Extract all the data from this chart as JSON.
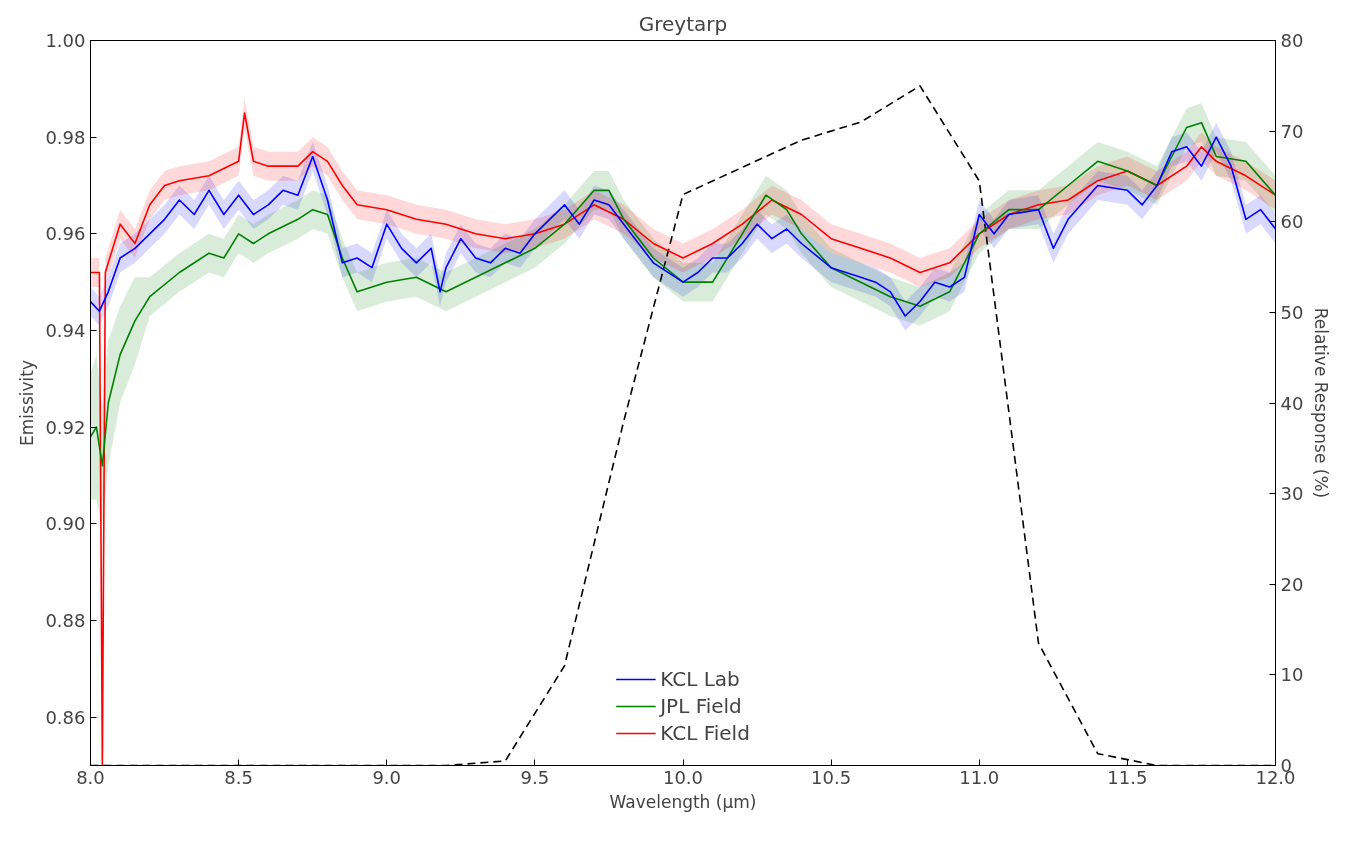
{
  "chart_data": {
    "type": "line",
    "title": "Greytarp",
    "xlabel": "Wavelength (μm)",
    "ylabel": "Emissivity",
    "y2label": "Relative Response (%)",
    "xlim": [
      8.0,
      12.0
    ],
    "xticks": [
      {
        "value": 8.0,
        "label": "8.0"
      },
      {
        "value": 8.5,
        "label": "8.5"
      },
      {
        "value": 9.0,
        "label": "9.0"
      },
      {
        "value": 9.5,
        "label": "9.5"
      },
      {
        "value": 10.0,
        "label": "10.0"
      },
      {
        "value": 10.5,
        "label": "10.5"
      },
      {
        "value": 11.0,
        "label": "11.0"
      },
      {
        "value": 11.5,
        "label": "11.5"
      },
      {
        "value": 12.0,
        "label": "12.0"
      }
    ],
    "ylim": [
      0.85,
      1.0
    ],
    "yticks": [
      0.86,
      0.88,
      {
        "value": 0.9,
        "label": "0.90"
      },
      0.92,
      0.94,
      0.96,
      0.98,
      {
        "value": 1.0,
        "label": "1.00"
      }
    ],
    "y2lim": [
      0,
      80
    ],
    "y2ticks": [
      0,
      10,
      20,
      30,
      40,
      50,
      60,
      70,
      80
    ],
    "grid": false,
    "legend": "bottom",
    "marker": "none",
    "line_style": "solid",
    "series": [
      {
        "name": "KCL Lab",
        "color": "#0000ff",
        "x": [
          8.0,
          8.03,
          8.06,
          8.1,
          8.15,
          8.2,
          8.25,
          8.3,
          8.35,
          8.4,
          8.45,
          8.5,
          8.55,
          8.6,
          8.65,
          8.7,
          8.75,
          8.8,
          8.85,
          8.9,
          8.95,
          9.0,
          9.05,
          9.1,
          9.15,
          9.18,
          9.2,
          9.25,
          9.3,
          9.35,
          9.4,
          9.45,
          9.5,
          9.55,
          9.6,
          9.65,
          9.7,
          9.75,
          9.8,
          9.85,
          9.9,
          10.0,
          10.05,
          10.1,
          10.15,
          10.2,
          10.25,
          10.3,
          10.35,
          10.4,
          10.5,
          10.6,
          10.65,
          10.7,
          10.75,
          10.8,
          10.85,
          10.9,
          10.95,
          11.0,
          11.05,
          11.1,
          11.2,
          11.25,
          11.3,
          11.4,
          11.5,
          11.55,
          11.6,
          11.65,
          11.7,
          11.75,
          11.8,
          11.85,
          11.9,
          11.95,
          12.0
        ],
        "values": [
          0.946,
          0.944,
          0.948,
          0.955,
          0.957,
          0.96,
          0.963,
          0.967,
          0.964,
          0.969,
          0.964,
          0.968,
          0.964,
          0.966,
          0.969,
          0.968,
          0.976,
          0.967,
          0.954,
          0.955,
          0.953,
          0.962,
          0.957,
          0.954,
          0.957,
          0.948,
          0.953,
          0.959,
          0.955,
          0.954,
          0.957,
          0.956,
          0.96,
          0.963,
          0.966,
          0.962,
          0.967,
          0.966,
          0.962,
          0.958,
          0.954,
          0.95,
          0.952,
          0.955,
          0.955,
          0.958,
          0.962,
          0.959,
          0.961,
          0.958,
          0.953,
          0.951,
          0.95,
          0.948,
          0.943,
          0.946,
          0.95,
          0.949,
          0.951,
          0.964,
          0.96,
          0.964,
          0.965,
          0.957,
          0.963,
          0.97,
          0.969,
          0.966,
          0.97,
          0.977,
          0.978,
          0.974,
          0.98,
          0.974,
          0.963,
          0.965,
          0.961
        ],
        "lower": [
          0.943,
          0.941,
          0.945,
          0.952,
          0.954,
          0.957,
          0.96,
          0.964,
          0.961,
          0.966,
          0.961,
          0.965,
          0.961,
          0.963,
          0.966,
          0.965,
          0.973,
          0.964,
          0.951,
          0.952,
          0.95,
          0.959,
          0.954,
          0.951,
          0.954,
          0.945,
          0.95,
          0.956,
          0.952,
          0.951,
          0.954,
          0.953,
          0.957,
          0.96,
          0.963,
          0.959,
          0.964,
          0.963,
          0.959,
          0.955,
          0.951,
          0.947,
          0.949,
          0.952,
          0.952,
          0.955,
          0.959,
          0.956,
          0.958,
          0.955,
          0.95,
          0.948,
          0.947,
          0.945,
          0.94,
          0.943,
          0.947,
          0.946,
          0.948,
          0.961,
          0.957,
          0.961,
          0.962,
          0.954,
          0.96,
          0.967,
          0.966,
          0.963,
          0.967,
          0.974,
          0.975,
          0.971,
          0.977,
          0.971,
          0.96,
          0.962,
          0.958
        ],
        "upper": [
          0.949,
          0.947,
          0.951,
          0.958,
          0.96,
          0.963,
          0.966,
          0.97,
          0.967,
          0.972,
          0.967,
          0.971,
          0.967,
          0.969,
          0.972,
          0.971,
          0.979,
          0.97,
          0.957,
          0.958,
          0.956,
          0.965,
          0.96,
          0.957,
          0.96,
          0.951,
          0.956,
          0.962,
          0.958,
          0.957,
          0.96,
          0.959,
          0.963,
          0.966,
          0.969,
          0.965,
          0.97,
          0.969,
          0.965,
          0.961,
          0.957,
          0.953,
          0.955,
          0.958,
          0.958,
          0.961,
          0.965,
          0.962,
          0.964,
          0.961,
          0.956,
          0.954,
          0.953,
          0.951,
          0.946,
          0.949,
          0.953,
          0.952,
          0.954,
          0.967,
          0.963,
          0.967,
          0.968,
          0.96,
          0.966,
          0.973,
          0.972,
          0.969,
          0.973,
          0.98,
          0.981,
          0.977,
          0.983,
          0.977,
          0.966,
          0.968,
          0.964
        ]
      },
      {
        "name": "JPL Field",
        "color": "#008000",
        "x": [
          8.0,
          8.02,
          8.04,
          8.06,
          8.1,
          8.15,
          8.2,
          8.3,
          8.4,
          8.45,
          8.5,
          8.55,
          8.6,
          8.7,
          8.75,
          8.8,
          8.85,
          8.9,
          9.0,
          9.1,
          9.2,
          9.3,
          9.4,
          9.5,
          9.6,
          9.7,
          9.75,
          9.8,
          9.9,
          10.0,
          10.1,
          10.2,
          10.28,
          10.35,
          10.4,
          10.5,
          10.6,
          10.7,
          10.8,
          10.9,
          11.0,
          11.1,
          11.2,
          11.3,
          11.4,
          11.5,
          11.6,
          11.7,
          11.75,
          11.8,
          11.9,
          12.0
        ],
        "values": [
          0.918,
          0.92,
          0.912,
          0.925,
          0.935,
          0.942,
          0.947,
          0.952,
          0.956,
          0.955,
          0.96,
          0.958,
          0.96,
          0.963,
          0.965,
          0.964,
          0.955,
          0.948,
          0.95,
          0.951,
          0.948,
          0.951,
          0.954,
          0.957,
          0.962,
          0.969,
          0.969,
          0.963,
          0.955,
          0.95,
          0.95,
          0.96,
          0.968,
          0.965,
          0.96,
          0.953,
          0.95,
          0.947,
          0.945,
          0.948,
          0.96,
          0.965,
          0.965,
          0.97,
          0.975,
          0.973,
          0.97,
          0.982,
          0.983,
          0.976,
          0.975,
          0.968
        ],
        "lower": [
          0.905,
          0.905,
          0.9,
          0.912,
          0.925,
          0.933,
          0.943,
          0.948,
          0.952,
          0.951,
          0.956,
          0.954,
          0.956,
          0.959,
          0.961,
          0.96,
          0.951,
          0.944,
          0.946,
          0.947,
          0.944,
          0.947,
          0.95,
          0.953,
          0.958,
          0.965,
          0.965,
          0.959,
          0.951,
          0.946,
          0.946,
          0.956,
          0.964,
          0.961,
          0.956,
          0.949,
          0.946,
          0.943,
          0.941,
          0.944,
          0.956,
          0.961,
          0.961,
          0.966,
          0.971,
          0.969,
          0.966,
          0.978,
          0.979,
          0.972,
          0.971,
          0.964
        ],
        "upper": [
          0.931,
          0.935,
          0.924,
          0.938,
          0.945,
          0.951,
          0.951,
          0.956,
          0.96,
          0.959,
          0.964,
          0.962,
          0.964,
          0.967,
          0.969,
          0.968,
          0.959,
          0.952,
          0.954,
          0.955,
          0.952,
          0.955,
          0.958,
          0.961,
          0.966,
          0.973,
          0.973,
          0.967,
          0.959,
          0.954,
          0.954,
          0.964,
          0.972,
          0.969,
          0.964,
          0.957,
          0.954,
          0.951,
          0.949,
          0.952,
          0.964,
          0.969,
          0.969,
          0.974,
          0.979,
          0.977,
          0.974,
          0.986,
          0.987,
          0.98,
          0.979,
          0.972
        ]
      },
      {
        "name": "KCL Field",
        "color": "#ff0000",
        "x": [
          8.0,
          8.03,
          8.04,
          8.05,
          8.1,
          8.15,
          8.2,
          8.25,
          8.3,
          8.4,
          8.5,
          8.52,
          8.55,
          8.6,
          8.7,
          8.75,
          8.8,
          8.85,
          8.9,
          9.0,
          9.1,
          9.2,
          9.3,
          9.4,
          9.5,
          9.6,
          9.7,
          9.8,
          9.9,
          10.0,
          10.1,
          10.2,
          10.3,
          10.4,
          10.5,
          10.6,
          10.7,
          10.8,
          10.9,
          11.0,
          11.1,
          11.2,
          11.3,
          11.4,
          11.5,
          11.6,
          11.7,
          11.75,
          11.8,
          11.9,
          12.0
        ],
        "values": [
          0.952,
          0.952,
          0.85,
          0.952,
          0.962,
          0.958,
          0.966,
          0.97,
          0.971,
          0.972,
          0.975,
          0.985,
          0.975,
          0.974,
          0.974,
          0.977,
          0.975,
          0.97,
          0.966,
          0.965,
          0.963,
          0.962,
          0.96,
          0.959,
          0.96,
          0.962,
          0.966,
          0.963,
          0.958,
          0.955,
          0.958,
          0.962,
          0.967,
          0.964,
          0.959,
          0.957,
          0.955,
          0.952,
          0.954,
          0.96,
          0.964,
          0.966,
          0.967,
          0.971,
          0.973,
          0.97,
          0.974,
          0.978,
          0.975,
          0.972,
          0.968
        ],
        "lower": [
          0.949,
          0.949,
          0.85,
          0.949,
          0.959,
          0.955,
          0.963,
          0.967,
          0.968,
          0.969,
          0.972,
          0.982,
          0.972,
          0.971,
          0.971,
          0.974,
          0.972,
          0.967,
          0.963,
          0.962,
          0.96,
          0.959,
          0.957,
          0.956,
          0.957,
          0.959,
          0.963,
          0.96,
          0.955,
          0.952,
          0.955,
          0.959,
          0.964,
          0.961,
          0.956,
          0.954,
          0.952,
          0.949,
          0.951,
          0.957,
          0.961,
          0.963,
          0.964,
          0.968,
          0.97,
          0.967,
          0.971,
          0.975,
          0.972,
          0.969,
          0.965
        ],
        "upper": [
          0.955,
          0.955,
          0.853,
          0.955,
          0.965,
          0.961,
          0.969,
          0.973,
          0.974,
          0.975,
          0.978,
          0.988,
          0.978,
          0.977,
          0.977,
          0.98,
          0.978,
          0.973,
          0.969,
          0.968,
          0.966,
          0.965,
          0.963,
          0.962,
          0.963,
          0.965,
          0.969,
          0.966,
          0.961,
          0.958,
          0.961,
          0.965,
          0.97,
          0.967,
          0.962,
          0.96,
          0.958,
          0.955,
          0.957,
          0.963,
          0.967,
          0.969,
          0.97,
          0.974,
          0.976,
          0.973,
          0.977,
          0.981,
          0.978,
          0.975,
          0.971
        ]
      },
      {
        "type": "line",
        "axis": "y2",
        "color": "#000000",
        "line_style": "dashed",
        "x": [
          8.0,
          8.2,
          8.4,
          8.6,
          8.8,
          9.0,
          9.2,
          9.4,
          9.6,
          9.8,
          10.0,
          10.2,
          10.4,
          10.6,
          10.8,
          11.0,
          11.2,
          11.4,
          11.6,
          11.8,
          12.0
        ],
        "values": [
          0,
          0,
          0,
          0,
          0,
          0,
          0,
          0.5,
          11,
          38,
          63,
          66,
          69,
          71,
          75,
          64.5,
          13.5,
          1.3,
          0,
          0,
          0
        ]
      }
    ]
  }
}
